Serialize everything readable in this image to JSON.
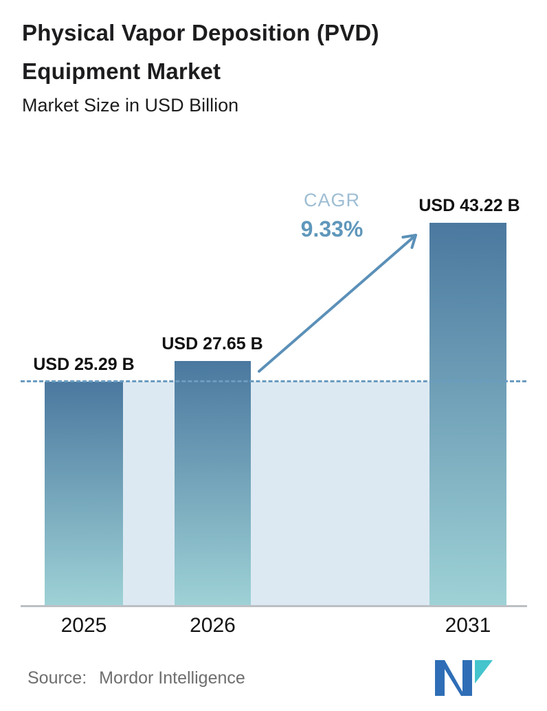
{
  "header": {
    "title": "Physical Vapor Deposition (PVD)\nEquipment Market",
    "subtitle": "Market Size in USD Billion"
  },
  "chart_data": {
    "type": "bar",
    "title": "Physical Vapor Deposition (PVD) Equipment Market",
    "subtitle": "Market Size in USD Billion",
    "unit": "USD Billion",
    "categories": [
      "2025",
      "2026",
      "2031"
    ],
    "values": [
      25.29,
      27.65,
      43.22
    ],
    "value_labels": [
      "USD 25.29 B",
      "USD 27.65 B",
      "USD 43.22 B"
    ],
    "cagr": {
      "label": "CAGR",
      "value": "9.33%"
    },
    "annotations": [
      "dashed horizontal reference line at 2025 value",
      "arrow from 2026 bar to 2031 bar indicating growth"
    ],
    "baseline_reference_value": 25.29,
    "ylim": [
      0,
      45
    ],
    "grid": false,
    "legend": false,
    "colors": {
      "bar_gradient_top": "#4a789f",
      "bar_gradient_bottom": "#9ed2d6",
      "dashed_line": "#6b9cc0",
      "band_fill": "#dde9f2",
      "arrow": "#5b90b8",
      "cagr_label": "#9dbdd3",
      "cagr_value": "#5f97bb",
      "axis_line": "#bcbfc3",
      "title_text": "#1d1d1f",
      "source_text": "#6e6e6e",
      "logo_blue": "#2f6eb6",
      "logo_teal": "#44c4cc"
    }
  },
  "footer": {
    "source_label": "Source:",
    "source_name": "Mordor Intelligence",
    "logo_icon": "mordor-intelligence-logo"
  }
}
